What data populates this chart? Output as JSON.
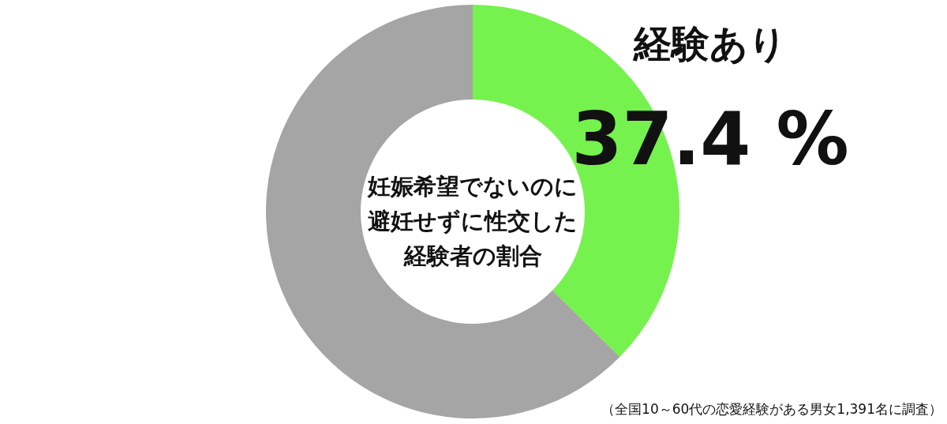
{
  "chart_data": {
    "type": "donut",
    "title": "妊娠希望でないのに避妊せずに性交した経験者の割合",
    "categories": [
      "経験あり",
      null
    ],
    "values": [
      37.4,
      62.6
    ],
    "colors": [
      "#76f24e",
      "#a5a5a5"
    ],
    "value_labels": [
      "37.4 %",
      null
    ],
    "annotations": [
      "（全国10～60代の恋愛経験がある男女1,391名に調査）"
    ],
    "legend": false
  }
}
